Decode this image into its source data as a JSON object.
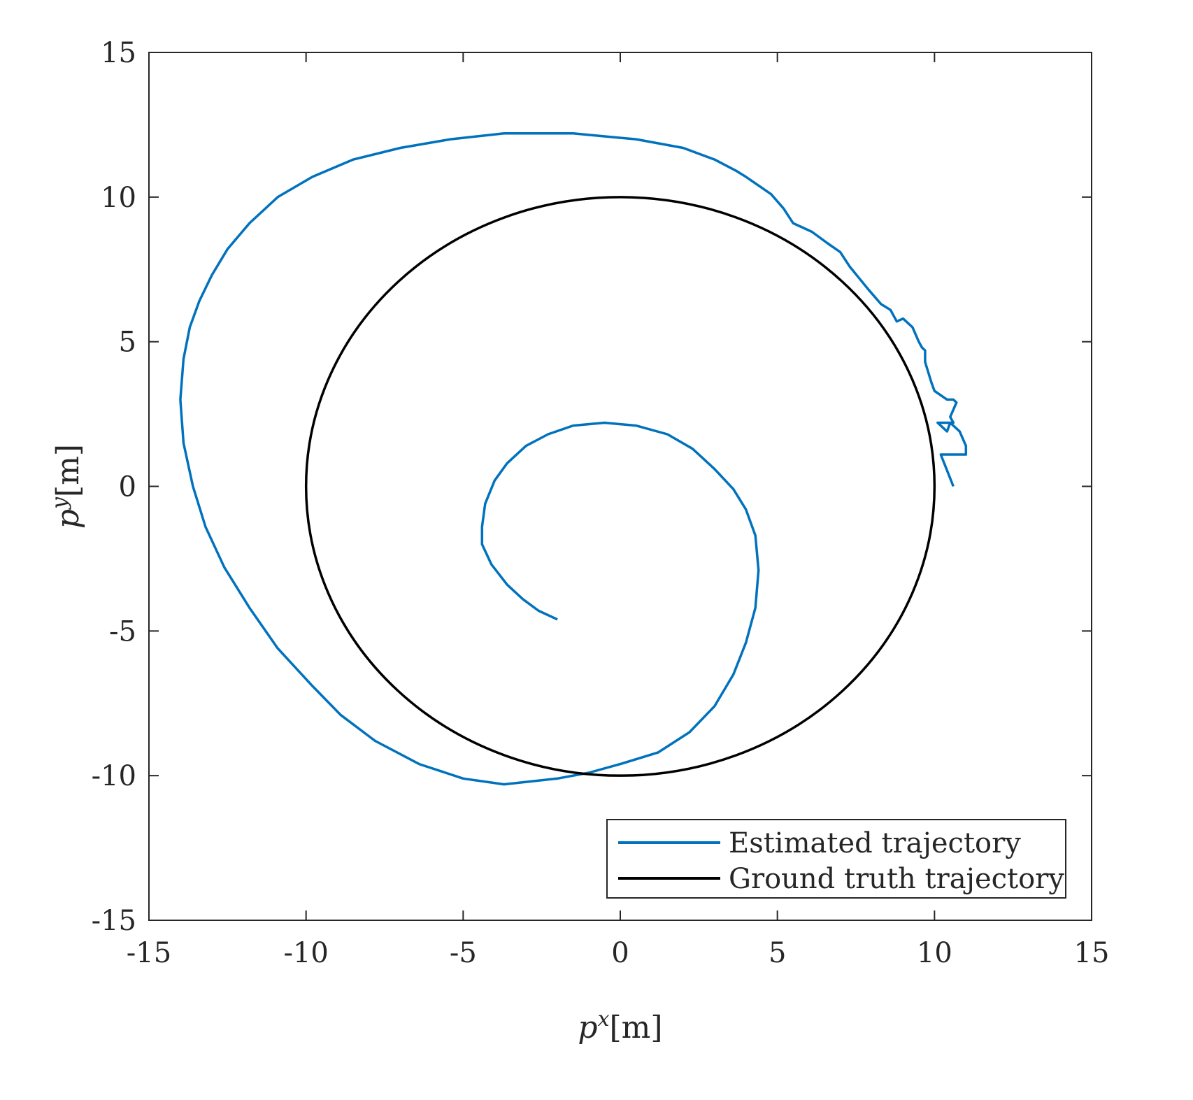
{
  "chart_data": {
    "type": "line",
    "title": "",
    "xlabel": "p^x[m]",
    "ylabel": "p^y[m]",
    "xlabel_parts": {
      "base": "p",
      "sup": "x",
      "unit": "[m]"
    },
    "ylabel_parts": {
      "base": "p",
      "sup": "y",
      "unit": "[m]"
    },
    "xlim": [
      -15,
      15
    ],
    "ylim": [
      -15,
      15
    ],
    "xticks": [
      -15,
      -10,
      -5,
      0,
      5,
      10,
      15
    ],
    "yticks": [
      -15,
      -10,
      -5,
      0,
      5,
      10,
      15
    ],
    "grid": false,
    "legend_position": "bottom-right",
    "series": [
      {
        "name": "Estimated trajectory",
        "color": "#0072BD",
        "x": [
          -2.0,
          -2.6,
          -3.1,
          -3.6,
          -4.1,
          -4.4,
          -4.4,
          -4.3,
          -4.0,
          -3.6,
          -3.0,
          -2.3,
          -1.5,
          -0.5,
          0.5,
          1.5,
          2.3,
          3.0,
          3.6,
          4.0,
          4.3,
          4.4,
          4.3,
          4.0,
          3.6,
          3.0,
          2.2,
          1.2,
          0.0,
          -1.0,
          -2.0,
          -3.7,
          -5.0,
          -6.4,
          -7.8,
          -8.9,
          -9.8,
          -10.9,
          -11.8,
          -12.6,
          -13.2,
          -13.6,
          -13.9,
          -14.0,
          -13.9,
          -13.7,
          -13.4,
          -13.0,
          -12.5,
          -11.8,
          -10.9,
          -9.8,
          -8.5,
          -7.0,
          -5.4,
          -3.7,
          -2.5,
          -1.5,
          -0.5,
          0.5,
          1.5,
          2.0,
          3.0,
          3.7,
          4.0,
          4.8,
          5.2,
          5.5,
          6.1,
          6.6,
          7.0,
          7.3,
          7.6,
          7.9,
          8.3,
          8.6,
          8.8,
          9.0,
          9.3,
          9.5,
          9.6,
          9.7,
          9.7,
          9.9,
          10.0,
          10.4,
          10.6,
          10.7,
          10.5,
          10.6,
          10.1,
          10.4,
          10.5,
          10.8,
          11.0,
          11.0,
          10.2,
          10.6
        ],
        "y": [
          -4.6,
          -4.3,
          -3.9,
          -3.4,
          -2.7,
          -2.0,
          -1.4,
          -0.6,
          0.2,
          0.8,
          1.4,
          1.8,
          2.1,
          2.2,
          2.1,
          1.8,
          1.3,
          0.6,
          -0.1,
          -0.8,
          -1.7,
          -2.9,
          -4.2,
          -5.4,
          -6.5,
          -7.6,
          -8.5,
          -9.2,
          -9.6,
          -9.9,
          -10.1,
          -10.3,
          -10.1,
          -9.6,
          -8.8,
          -7.9,
          -6.9,
          -5.6,
          -4.2,
          -2.8,
          -1.4,
          0.0,
          1.5,
          3.0,
          4.4,
          5.5,
          6.4,
          7.3,
          8.2,
          9.1,
          10.0,
          10.7,
          11.3,
          11.7,
          12.0,
          12.2,
          12.2,
          12.2,
          12.1,
          12.0,
          11.8,
          11.7,
          11.3,
          10.9,
          10.7,
          10.1,
          9.6,
          9.1,
          8.8,
          8.4,
          8.1,
          7.6,
          7.2,
          6.8,
          6.3,
          6.1,
          5.7,
          5.8,
          5.5,
          5.0,
          4.8,
          4.7,
          4.3,
          3.6,
          3.3,
          3.0,
          3.0,
          2.9,
          2.4,
          2.2,
          2.2,
          1.9,
          2.2,
          1.9,
          1.4,
          1.1,
          1.1,
          0.0
        ]
      },
      {
        "name": "Ground truth trajectory",
        "color": "#000000",
        "shape": "circle",
        "center": [
          0,
          0
        ],
        "radius": 10
      }
    ]
  }
}
